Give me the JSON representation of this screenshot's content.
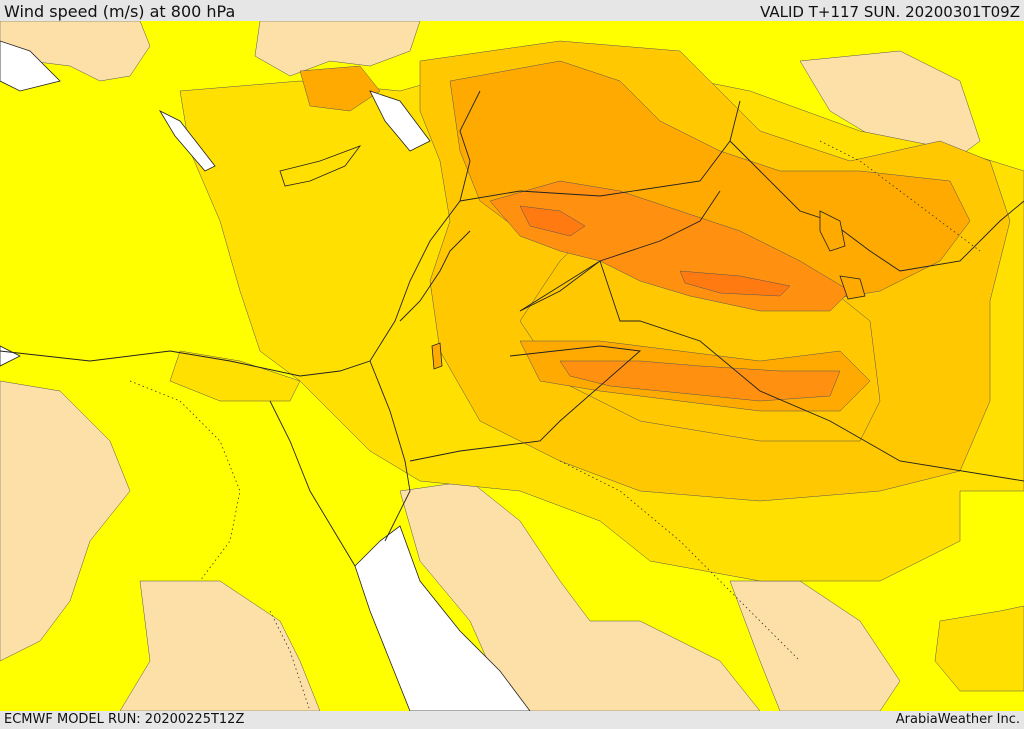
{
  "header": {
    "title": "Wind speed (m/s) at 800 hPa",
    "valid": "VALID T+117 SUN. 20200301T09Z"
  },
  "footer": {
    "model_run": "ECMWF MODEL RUN: 20200225T12Z",
    "credit": "ArabiaWeather Inc."
  },
  "colors": {
    "sea": "#ffffff",
    "calm": "#fde0a8",
    "band1": "#ffff00",
    "band2": "#ffe000",
    "band3": "#ffc800",
    "band4": "#ffaa00",
    "band5": "#ff9010",
    "band6": "#ff7a10",
    "border_line": "#222222"
  }
}
